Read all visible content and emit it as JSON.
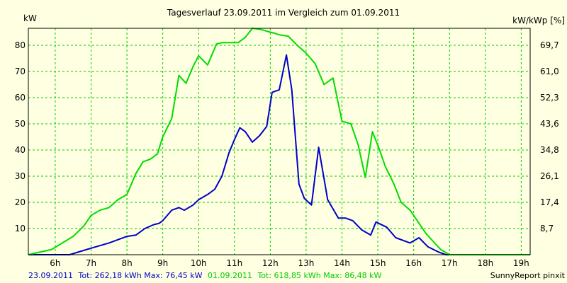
{
  "chart_data": {
    "type": "line",
    "title": "Tagesverlauf 23.09.2011 im Vergleich zum 01.09.2011",
    "ylabel_left": "kW",
    "ylabel_right": "kW/kWp [%]",
    "x_ticks": [
      "6h",
      "7h",
      "8h",
      "9h",
      "10h",
      "11h",
      "12h",
      "13h",
      "14h",
      "15h",
      "16h",
      "17h",
      "18h",
      "19h"
    ],
    "y_ticks_left": [
      "10",
      "20",
      "30",
      "40",
      "50",
      "60",
      "70",
      "80"
    ],
    "y_ticks_right": [
      "8,7",
      "17,4",
      "26,1",
      "34,8",
      "43,6",
      "52,3",
      "61,0",
      "69,7"
    ],
    "xlim": [
      5.25,
      19.25
    ],
    "ylim": [
      0,
      86.5
    ],
    "grid": true,
    "series": [
      {
        "name": "23.09.2011",
        "color": "#0000cc",
        "x": [
          5.25,
          6.0,
          6.4,
          7.0,
          7.5,
          7.8,
          8.0,
          8.25,
          8.5,
          8.75,
          8.9,
          9.0,
          9.25,
          9.45,
          9.6,
          9.85,
          10.0,
          10.25,
          10.45,
          10.65,
          10.85,
          11.0,
          11.15,
          11.3,
          11.5,
          11.7,
          11.9,
          12.05,
          12.25,
          12.45,
          12.6,
          12.8,
          12.95,
          13.15,
          13.35,
          13.6,
          13.9,
          14.1,
          14.3,
          14.55,
          14.8,
          14.95,
          15.25,
          15.5,
          15.9,
          16.15,
          16.4,
          16.7,
          16.9,
          17.05,
          17.25,
          17.55,
          17.9,
          18.25,
          18.55
        ],
        "y": [
          0,
          0,
          0,
          2.5,
          4.5,
          6,
          7,
          7.5,
          10,
          11.5,
          12,
          13,
          17,
          18,
          17,
          19,
          21,
          23,
          25,
          30,
          39,
          44,
          48.5,
          47,
          43,
          45.5,
          49,
          62,
          63,
          76.3,
          63,
          27,
          21.5,
          19,
          41,
          21,
          14,
          14,
          13,
          9.5,
          7.5,
          12.5,
          10.5,
          6.5,
          4.5,
          6.5,
          3,
          1,
          0,
          0,
          0,
          0,
          0,
          0,
          0
        ]
      },
      {
        "name": "01.09.2011",
        "color": "#00dd00",
        "x": [
          5.25,
          5.9,
          6.2,
          6.5,
          6.8,
          7.0,
          7.25,
          7.5,
          7.75,
          8.0,
          8.25,
          8.45,
          8.65,
          8.85,
          9.0,
          9.25,
          9.45,
          9.65,
          9.85,
          10.0,
          10.25,
          10.5,
          10.65,
          10.9,
          11.1,
          11.3,
          11.5,
          11.75,
          12.0,
          12.15,
          12.25,
          12.5,
          12.75,
          13.0,
          13.25,
          13.5,
          13.75,
          14.0,
          14.25,
          14.45,
          14.65,
          14.85,
          15.05,
          15.2,
          15.45,
          15.65,
          15.9,
          16.15,
          16.35,
          16.55,
          16.75,
          17.0,
          17.25,
          17.5,
          17.75,
          18.0,
          18.25,
          18.5,
          18.75,
          19.0,
          19.25
        ],
        "y": [
          0,
          2,
          4.5,
          7,
          11,
          15,
          17,
          18,
          21,
          23,
          31,
          35.5,
          36.5,
          38.5,
          45,
          52,
          68.5,
          65.5,
          72,
          76,
          72.5,
          80.5,
          81,
          81,
          81,
          83,
          86.5,
          86,
          85,
          84.5,
          84,
          83.5,
          80,
          77,
          73,
          65,
          67.5,
          51,
          50,
          42,
          29.5,
          47,
          40,
          34,
          27,
          20,
          17,
          12,
          8,
          5,
          2,
          0,
          0,
          0,
          0,
          0,
          0,
          0,
          0,
          0,
          0
        ]
      }
    ]
  },
  "footer": {
    "series1_label": "23.09.2011",
    "series1_stats": "Tot: 262,18 kWh Max: 76,45 kW",
    "series2_label": "01.09.2011",
    "series2_stats": "Tot: 618,85 kWh Max: 86,48 kW",
    "credit": "SunnyReport pinxit"
  },
  "colors": {
    "background": "#ffffe1",
    "plot_border": "#000000",
    "grid": "#00cc00",
    "series1": "#0000cc",
    "series2": "#00dd00"
  }
}
